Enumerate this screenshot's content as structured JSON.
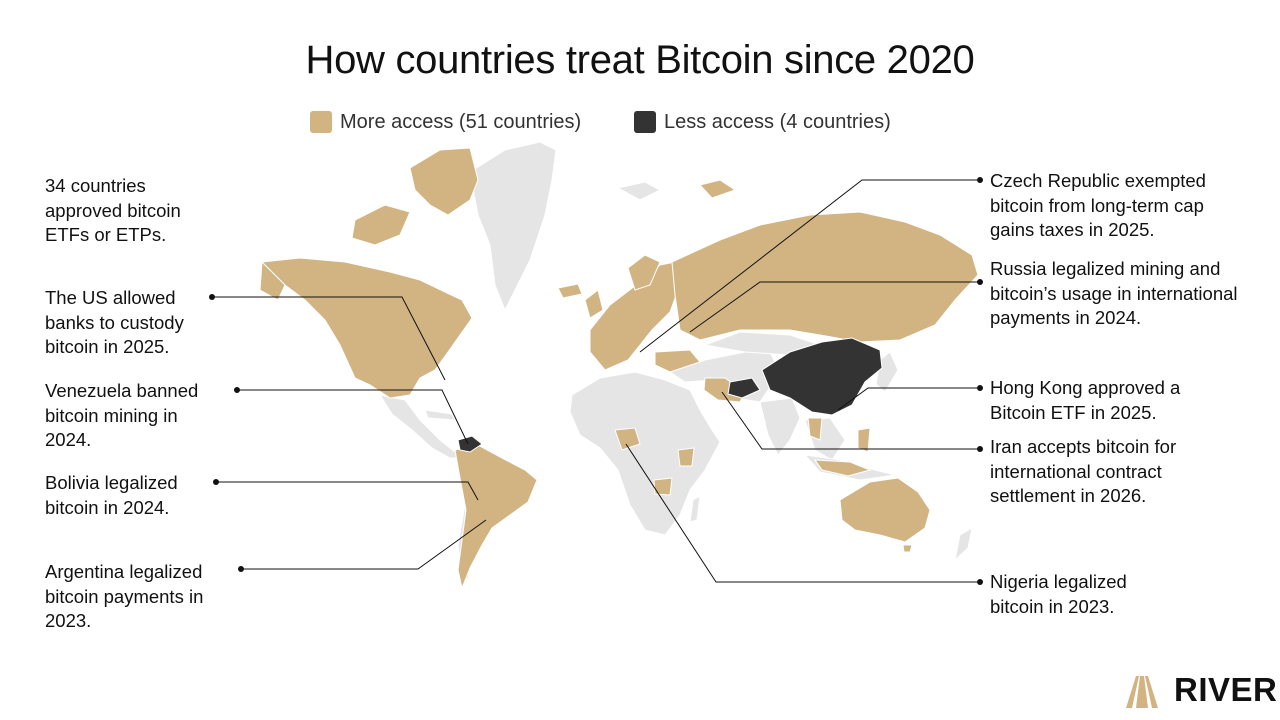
{
  "title": "How countries treat Bitcoin since 2020",
  "legend": {
    "more": {
      "label": "More access (51 countries)",
      "color": "#D2B483"
    },
    "less": {
      "label": "Less access (4 countries)",
      "color": "#333333"
    }
  },
  "colors": {
    "land_neutral": "#E5E5E5",
    "line": "#111111"
  },
  "callouts": {
    "etf": "34 countries approved bitcoin ETFs or ETPs.",
    "us": "The US allowed banks to custody bitcoin in 2025.",
    "venezuela": "Venezuela banned bitcoin mining in 2024.",
    "bolivia": "Bolivia legalized bitcoin in 2024.",
    "argentina": "Argentina legalized bitcoin payments in 2023.",
    "czech": "Czech Republic exempted bitcoin from long-term cap gains taxes in 2025.",
    "russia": "Russia legalized mining and bitcoin’s usage in international payments in 2024.",
    "hongkong": "Hong Kong approved a Bitcoin ETF in 2025.",
    "iran": "Iran accepts bitcoin for international contract settlement in 2026.",
    "nigeria": "Nigeria legalized bitcoin in 2023."
  },
  "logo": {
    "text": "RIVER",
    "icon": "river-mountain-icon"
  }
}
